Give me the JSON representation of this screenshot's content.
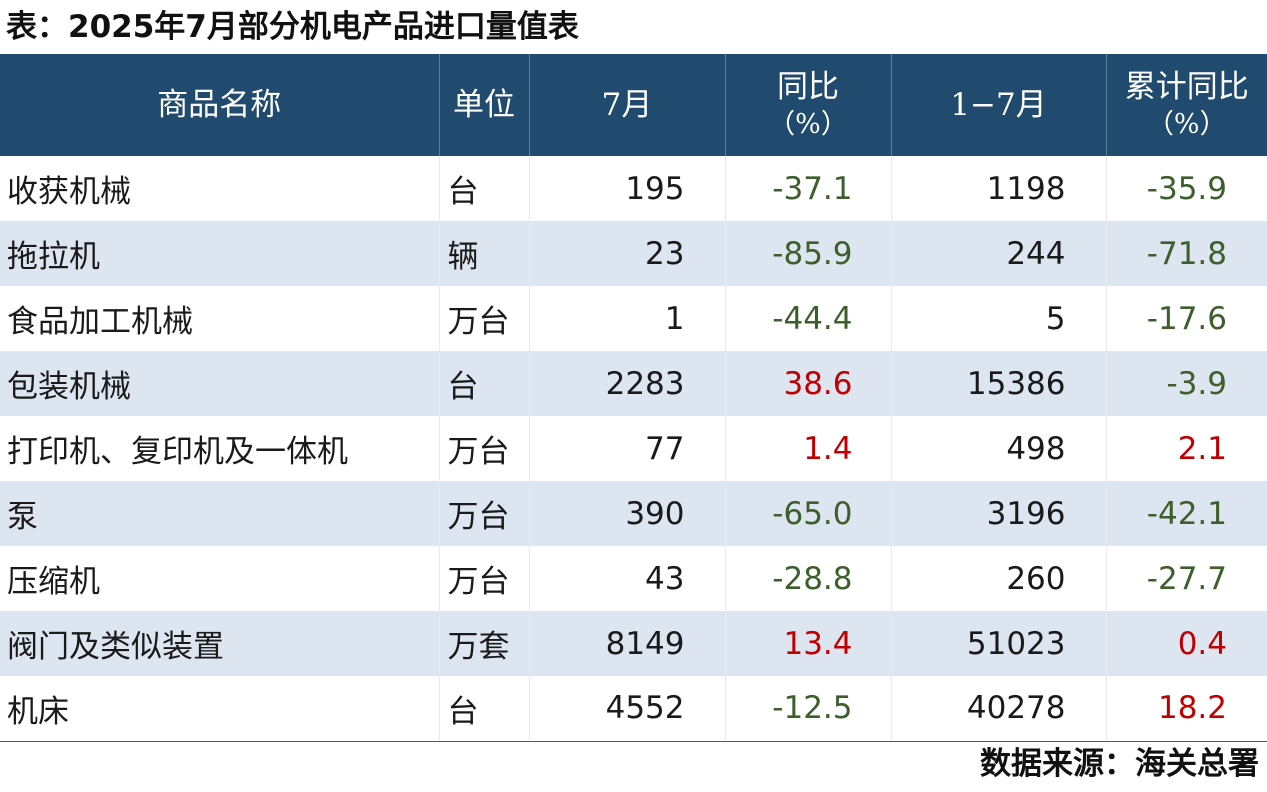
{
  "title": "表：2025年7月部分机电产品进口量值表",
  "colors": {
    "header_bg": "#204a6e",
    "header_text": "#ffffff",
    "stripe_bg": "#dce5f0",
    "negative": "#3d5f2c",
    "positive": "#c00000"
  },
  "table": {
    "headers": {
      "name": "商品名称",
      "unit": "单位",
      "july": "7月",
      "yoy": "同比",
      "yoy_unit": "（%）",
      "cum": "1−7月",
      "cum_yoy": "累计同比",
      "cum_yoy_unit": "（%）"
    },
    "rows": [
      {
        "name": "收获机械",
        "unit": "台",
        "july": "195",
        "yoy": "-37.1",
        "cum": "1198",
        "cum_yoy": "-35.9"
      },
      {
        "name": "拖拉机",
        "unit": "辆",
        "july": "23",
        "yoy": "-85.9",
        "cum": "244",
        "cum_yoy": "-71.8"
      },
      {
        "name": "食品加工机械",
        "unit": "万台",
        "july": "1",
        "yoy": "-44.4",
        "cum": "5",
        "cum_yoy": "-17.6"
      },
      {
        "name": "包装机械",
        "unit": "台",
        "july": "2283",
        "yoy": "38.6",
        "cum": "15386",
        "cum_yoy": "-3.9"
      },
      {
        "name": "打印机、复印机及一体机",
        "unit": "万台",
        "july": "77",
        "yoy": "1.4",
        "cum": "498",
        "cum_yoy": "2.1"
      },
      {
        "name": "泵",
        "unit": "万台",
        "july": "390",
        "yoy": "-65.0",
        "cum": "3196",
        "cum_yoy": "-42.1"
      },
      {
        "name": "压缩机",
        "unit": "万台",
        "july": "43",
        "yoy": "-28.8",
        "cum": "260",
        "cum_yoy": "-27.7"
      },
      {
        "name": "阀门及类似装置",
        "unit": "万套",
        "july": "8149",
        "yoy": "13.4",
        "cum": "51023",
        "cum_yoy": "0.4"
      },
      {
        "name": "机床",
        "unit": "台",
        "july": "4552",
        "yoy": "-12.5",
        "cum": "40278",
        "cum_yoy": "18.2"
      }
    ]
  },
  "source": "数据来源：海关总署"
}
